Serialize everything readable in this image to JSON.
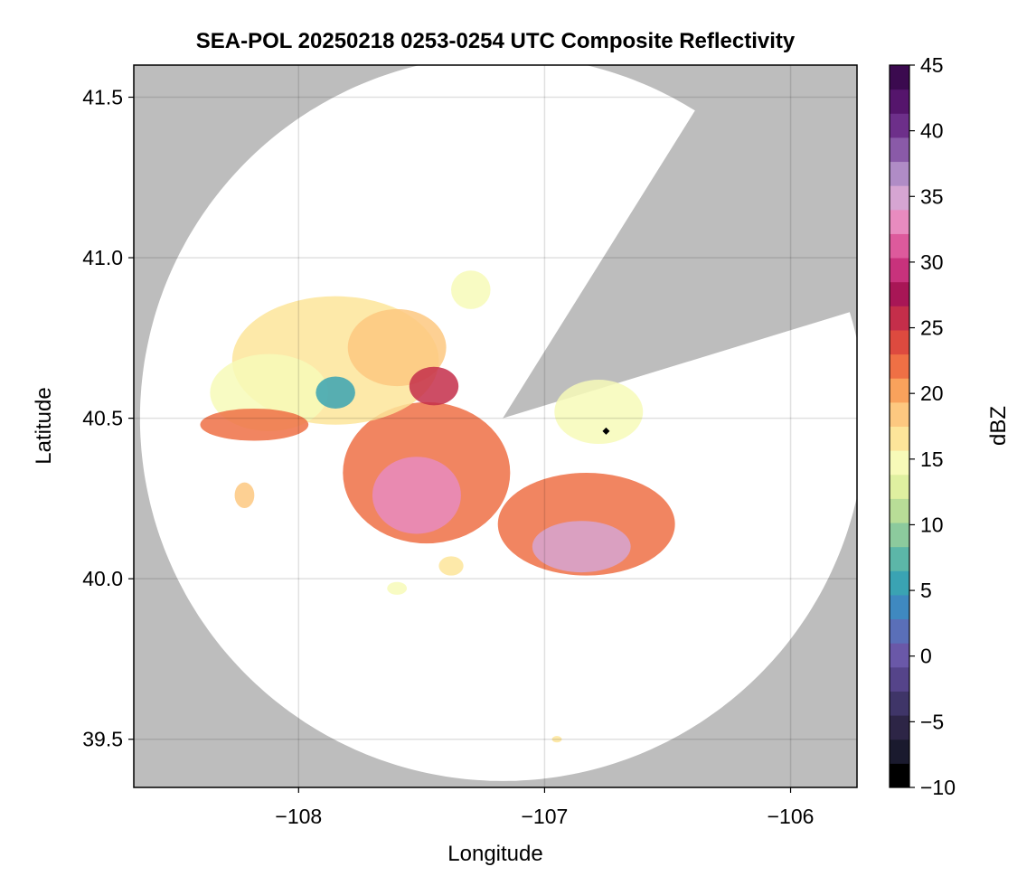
{
  "chart_data": {
    "type": "heatmap",
    "title": "SEA-POL 20250218 0253-0254 UTC Composite Reflectivity",
    "xlabel": "Longitude",
    "ylabel": "Latitude",
    "xlim": [
      -108.67,
      -105.73
    ],
    "ylim": [
      39.35,
      41.6
    ],
    "xticks": [
      -108,
      -107,
      -106
    ],
    "yticks": [
      39.5,
      40.0,
      40.5,
      41.0,
      41.5
    ],
    "grid": true,
    "colorbar": {
      "label": "dBZ",
      "range": [
        -10,
        45
      ],
      "ticks": [
        -10,
        -5,
        0,
        5,
        10,
        15,
        20,
        25,
        30,
        35,
        40,
        45
      ],
      "colormap": [
        "#000000",
        "#1a1a2e",
        "#2d2546",
        "#3f3568",
        "#55448a",
        "#6a58a8",
        "#5a6fb8",
        "#3f89c0",
        "#3aa3b3",
        "#5cb6a8",
        "#8cca9d",
        "#b8dd97",
        "#dff0a0",
        "#f7fab8",
        "#fde59a",
        "#fdc880",
        "#f9a25c",
        "#ef7045",
        "#dd4a3f",
        "#c42e4a",
        "#a81656",
        "#c8327c",
        "#dd5a9c",
        "#e88bbf",
        "#d6a5d2",
        "#b08cc6",
        "#8a5aa8",
        "#6d2f8a",
        "#55156c",
        "#3b0a4f"
      ]
    },
    "radar": {
      "center": [
        -107.17,
        40.5
      ],
      "max_range_deg_lat": 1.13,
      "blocked_sectors_deg": [
        [
          17,
          58
        ]
      ]
    },
    "echo_cells": [
      {
        "lon": -107.48,
        "lat": 40.33,
        "rx": 0.34,
        "ry": 0.22,
        "dbz": 22
      },
      {
        "lon": -107.52,
        "lat": 40.26,
        "rx": 0.18,
        "ry": 0.12,
        "dbz": 33
      },
      {
        "lon": -106.83,
        "lat": 40.17,
        "rx": 0.36,
        "ry": 0.16,
        "dbz": 22
      },
      {
        "lon": -106.85,
        "lat": 40.1,
        "rx": 0.2,
        "ry": 0.08,
        "dbz": 34
      },
      {
        "lon": -107.85,
        "lat": 40.68,
        "rx": 0.42,
        "ry": 0.2,
        "dbz": 16
      },
      {
        "lon": -108.12,
        "lat": 40.58,
        "rx": 0.24,
        "ry": 0.12,
        "dbz": 14
      },
      {
        "lon": -107.85,
        "lat": 40.58,
        "rx": 0.08,
        "ry": 0.05,
        "dbz": 6
      },
      {
        "lon": -107.6,
        "lat": 40.72,
        "rx": 0.2,
        "ry": 0.12,
        "dbz": 18
      },
      {
        "lon": -107.45,
        "lat": 40.6,
        "rx": 0.1,
        "ry": 0.06,
        "dbz": 26
      },
      {
        "lon": -107.3,
        "lat": 40.9,
        "rx": 0.08,
        "ry": 0.06,
        "dbz": 14
      },
      {
        "lon": -106.78,
        "lat": 40.52,
        "rx": 0.18,
        "ry": 0.1,
        "dbz": 14
      },
      {
        "lon": -108.18,
        "lat": 40.48,
        "rx": 0.22,
        "ry": 0.05,
        "dbz": 22
      },
      {
        "lon": -108.22,
        "lat": 40.26,
        "rx": 0.04,
        "ry": 0.04,
        "dbz": 18
      },
      {
        "lon": -107.38,
        "lat": 40.04,
        "rx": 0.05,
        "ry": 0.03,
        "dbz": 17
      },
      {
        "lon": -107.6,
        "lat": 39.97,
        "rx": 0.04,
        "ry": 0.02,
        "dbz": 14
      },
      {
        "lon": -106.95,
        "lat": 39.5,
        "rx": 0.02,
        "ry": 0.01,
        "dbz": 17
      }
    ],
    "markers": [
      {
        "lon": -106.75,
        "lat": 40.46
      }
    ]
  }
}
